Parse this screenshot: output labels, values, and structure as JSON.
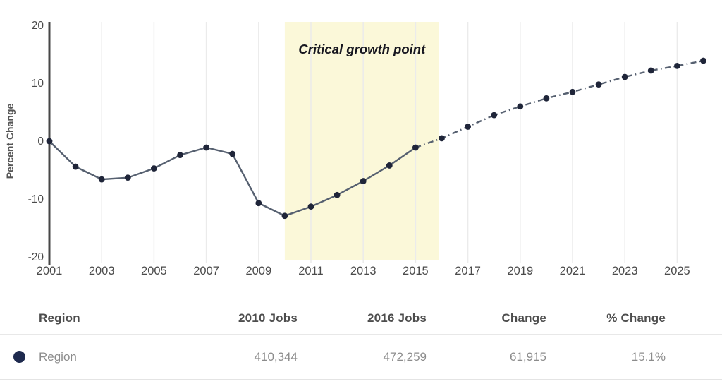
{
  "chart_data": {
    "type": "line",
    "title": "",
    "xlabel": "",
    "ylabel": "Percent Change",
    "x": [
      2001,
      2002,
      2003,
      2004,
      2005,
      2006,
      2007,
      2008,
      2009,
      2010,
      2011,
      2012,
      2013,
      2014,
      2015,
      2016,
      2017,
      2018,
      2019,
      2020,
      2021,
      2022,
      2023,
      2024,
      2025,
      2026
    ],
    "series": [
      {
        "name": "Region",
        "values": [
          0,
          -4.4,
          -6.6,
          -6.3,
          -4.7,
          -2.4,
          -1.1,
          -2.2,
          -10.7,
          -12.9,
          -11.3,
          -9.3,
          -6.9,
          -4.2,
          -1.1,
          0.5,
          2.5,
          4.5,
          6.0,
          7.4,
          8.5,
          9.8,
          11.1,
          12.2,
          13.0,
          13.9
        ]
      }
    ],
    "ylim": [
      -20,
      20
    ],
    "y_ticks": [
      20,
      10,
      0,
      -10,
      -20
    ],
    "x_ticks": [
      2001,
      2003,
      2005,
      2007,
      2009,
      2011,
      2013,
      2015,
      2017,
      2019,
      2021,
      2023,
      2025
    ],
    "grid": "vertical-only",
    "legend_position": "table-below",
    "solid_until_x": 2015,
    "projection_style": "dash-dot",
    "highlight_band": {
      "from_x": 2010,
      "to_x": 2015.9,
      "label": "Critical growth point"
    }
  },
  "annotation_label": "Critical growth point",
  "y_axis_label": "Percent Change",
  "table": {
    "headers": [
      "Region",
      "2010 Jobs",
      "2016 Jobs",
      "Change",
      "% Change"
    ],
    "rows": [
      {
        "region": "Region",
        "jobs_2010": "410,344",
        "jobs_2016": "472,259",
        "change": "61,915",
        "pct_change": "15.1%"
      }
    ]
  },
  "colors": {
    "marker": "#1f2539",
    "line": "#566070",
    "band": "#fbf8d9",
    "grid": "#ebebeb",
    "axis": "#474747",
    "tick_text": "#4b4b4b",
    "annotation_text": "#16161f",
    "legend_dot": "#1e2a4e",
    "header_text": "#4d4d4d",
    "row_text": "#8c8c8c"
  }
}
